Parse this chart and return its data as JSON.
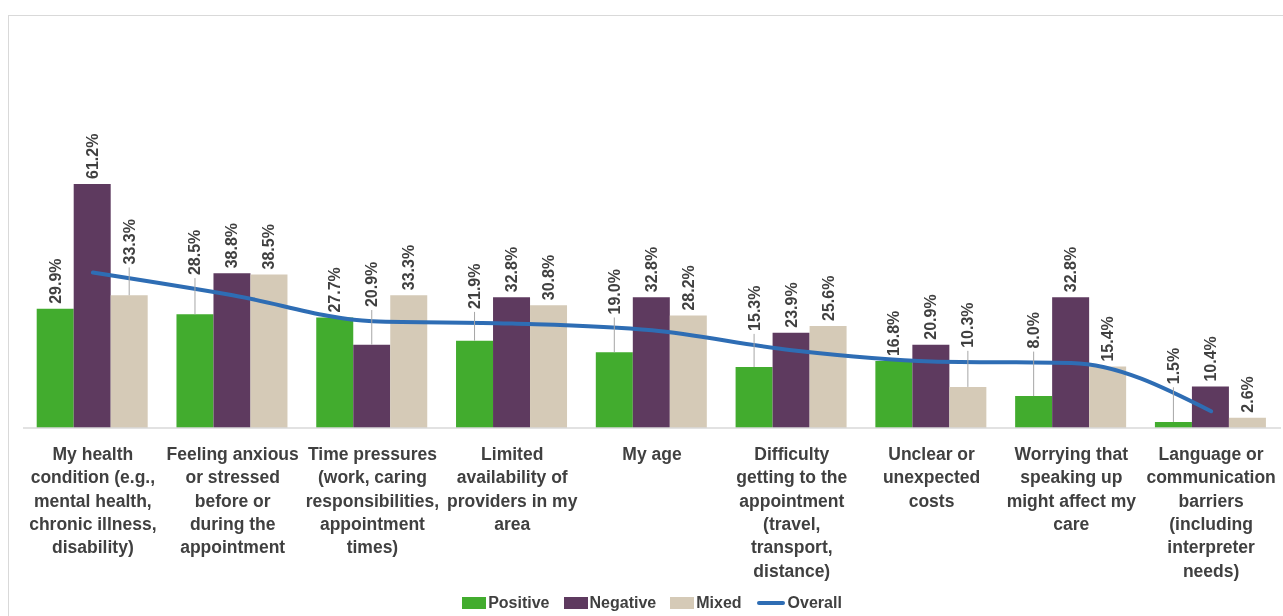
{
  "chart_data": {
    "type": "bar",
    "categories": [
      "My health condition (e.g., mental health, chronic illness, disability)",
      "Feeling anxious or stressed before or during the appointment",
      "Time pressures (work, caring responsibilities, appointment times)",
      "Limited availability of providers in my area",
      "My age",
      "Difficulty getting to the appointment (travel, transport, distance)",
      "Unclear or unexpected costs",
      "Worrying that speaking up might affect my care",
      "Language or communication barriers (including interpreter needs)"
    ],
    "series": [
      {
        "name": "Positive",
        "color": "#42ac2e",
        "values": [
          29.9,
          28.5,
          27.7,
          21.9,
          19.0,
          15.3,
          16.8,
          8.0,
          1.5
        ],
        "value_labels": [
          "29.9%",
          "28.5%",
          "27.7%",
          "21.9%",
          "19.0%",
          "15.3%",
          "16.8%",
          "8.0%",
          "1.5%"
        ]
      },
      {
        "name": "Negative",
        "color": "#5e3a5f",
        "values": [
          61.2,
          38.8,
          20.9,
          32.8,
          32.8,
          23.9,
          20.9,
          32.8,
          10.4
        ],
        "value_labels": [
          "61.2%",
          "38.8%",
          "20.9%",
          "32.8%",
          "32.8%",
          "23.9%",
          "20.9%",
          "32.8%",
          "10.4%"
        ]
      },
      {
        "name": "Mixed",
        "color": "#d5cab7",
        "values": [
          33.3,
          38.5,
          33.3,
          30.8,
          28.2,
          25.6,
          10.3,
          15.4,
          2.6
        ],
        "value_labels": [
          "33.3%",
          "38.5%",
          "33.3%",
          "30.8%",
          "28.2%",
          "25.6%",
          "10.3%",
          "15.4%",
          "2.6%"
        ]
      },
      {
        "name": "Overall",
        "type": "line",
        "color": "#2e6db4",
        "values": [
          39.0,
          33.3,
          26.8,
          26.2,
          24.5,
          19.5,
          16.7,
          16.3,
          4.2
        ]
      }
    ],
    "legend": "bottom",
    "tick_labels": "x",
    "marker": "none"
  }
}
